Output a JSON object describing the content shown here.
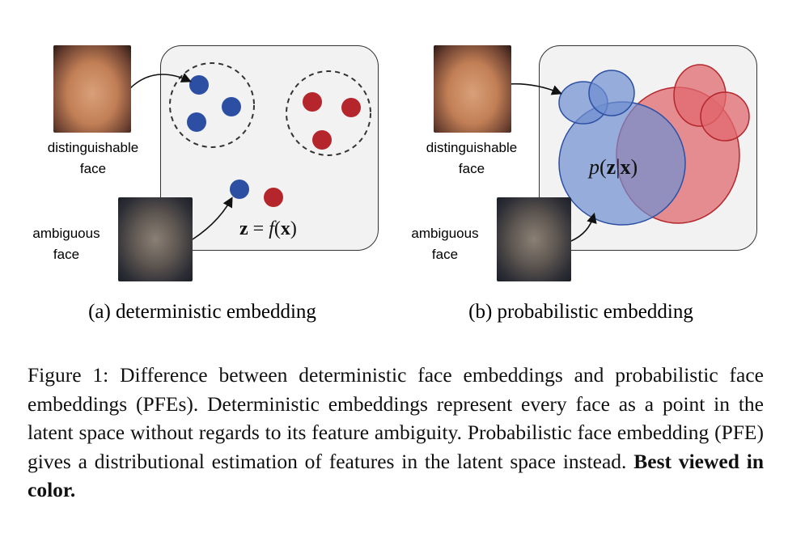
{
  "panel_a": {
    "distinguishable_label_1": "distinguishable",
    "distinguishable_label_2": "face",
    "ambiguous_label_1": "ambiguous",
    "ambiguous_label_2": "face",
    "equation_lhs": "z",
    "equation_op": " = ",
    "equation_f": "f",
    "equation_arg": "x",
    "subcaption": "(a) deterministic embedding"
  },
  "panel_b": {
    "distinguishable_label_1": "distinguishable",
    "distinguishable_label_2": "face",
    "ambiguous_label_1": "ambiguous",
    "ambiguous_label_2": "face",
    "equation_p": "p",
    "equation_z": "z",
    "equation_x": "x",
    "subcaption": "(b) probabilistic embedding"
  },
  "caption": {
    "text": "Figure 1: Difference between deterministic face embeddings and probabilistic face embeddings (PFEs). Deterministic embeddings represent every face as a point in the latent space without regards to its feature ambiguity. Probabilistic face embedding (PFE) gives a distributional estimation of features in the latent space instead.",
    "bold": "Best viewed in color."
  },
  "colors": {
    "blue": "#2c4fa3",
    "red": "#b5262c",
    "blue_fill": "#6f8fd0",
    "red_fill": "#e06a6f",
    "panel_bg": "#f2f2f2"
  }
}
